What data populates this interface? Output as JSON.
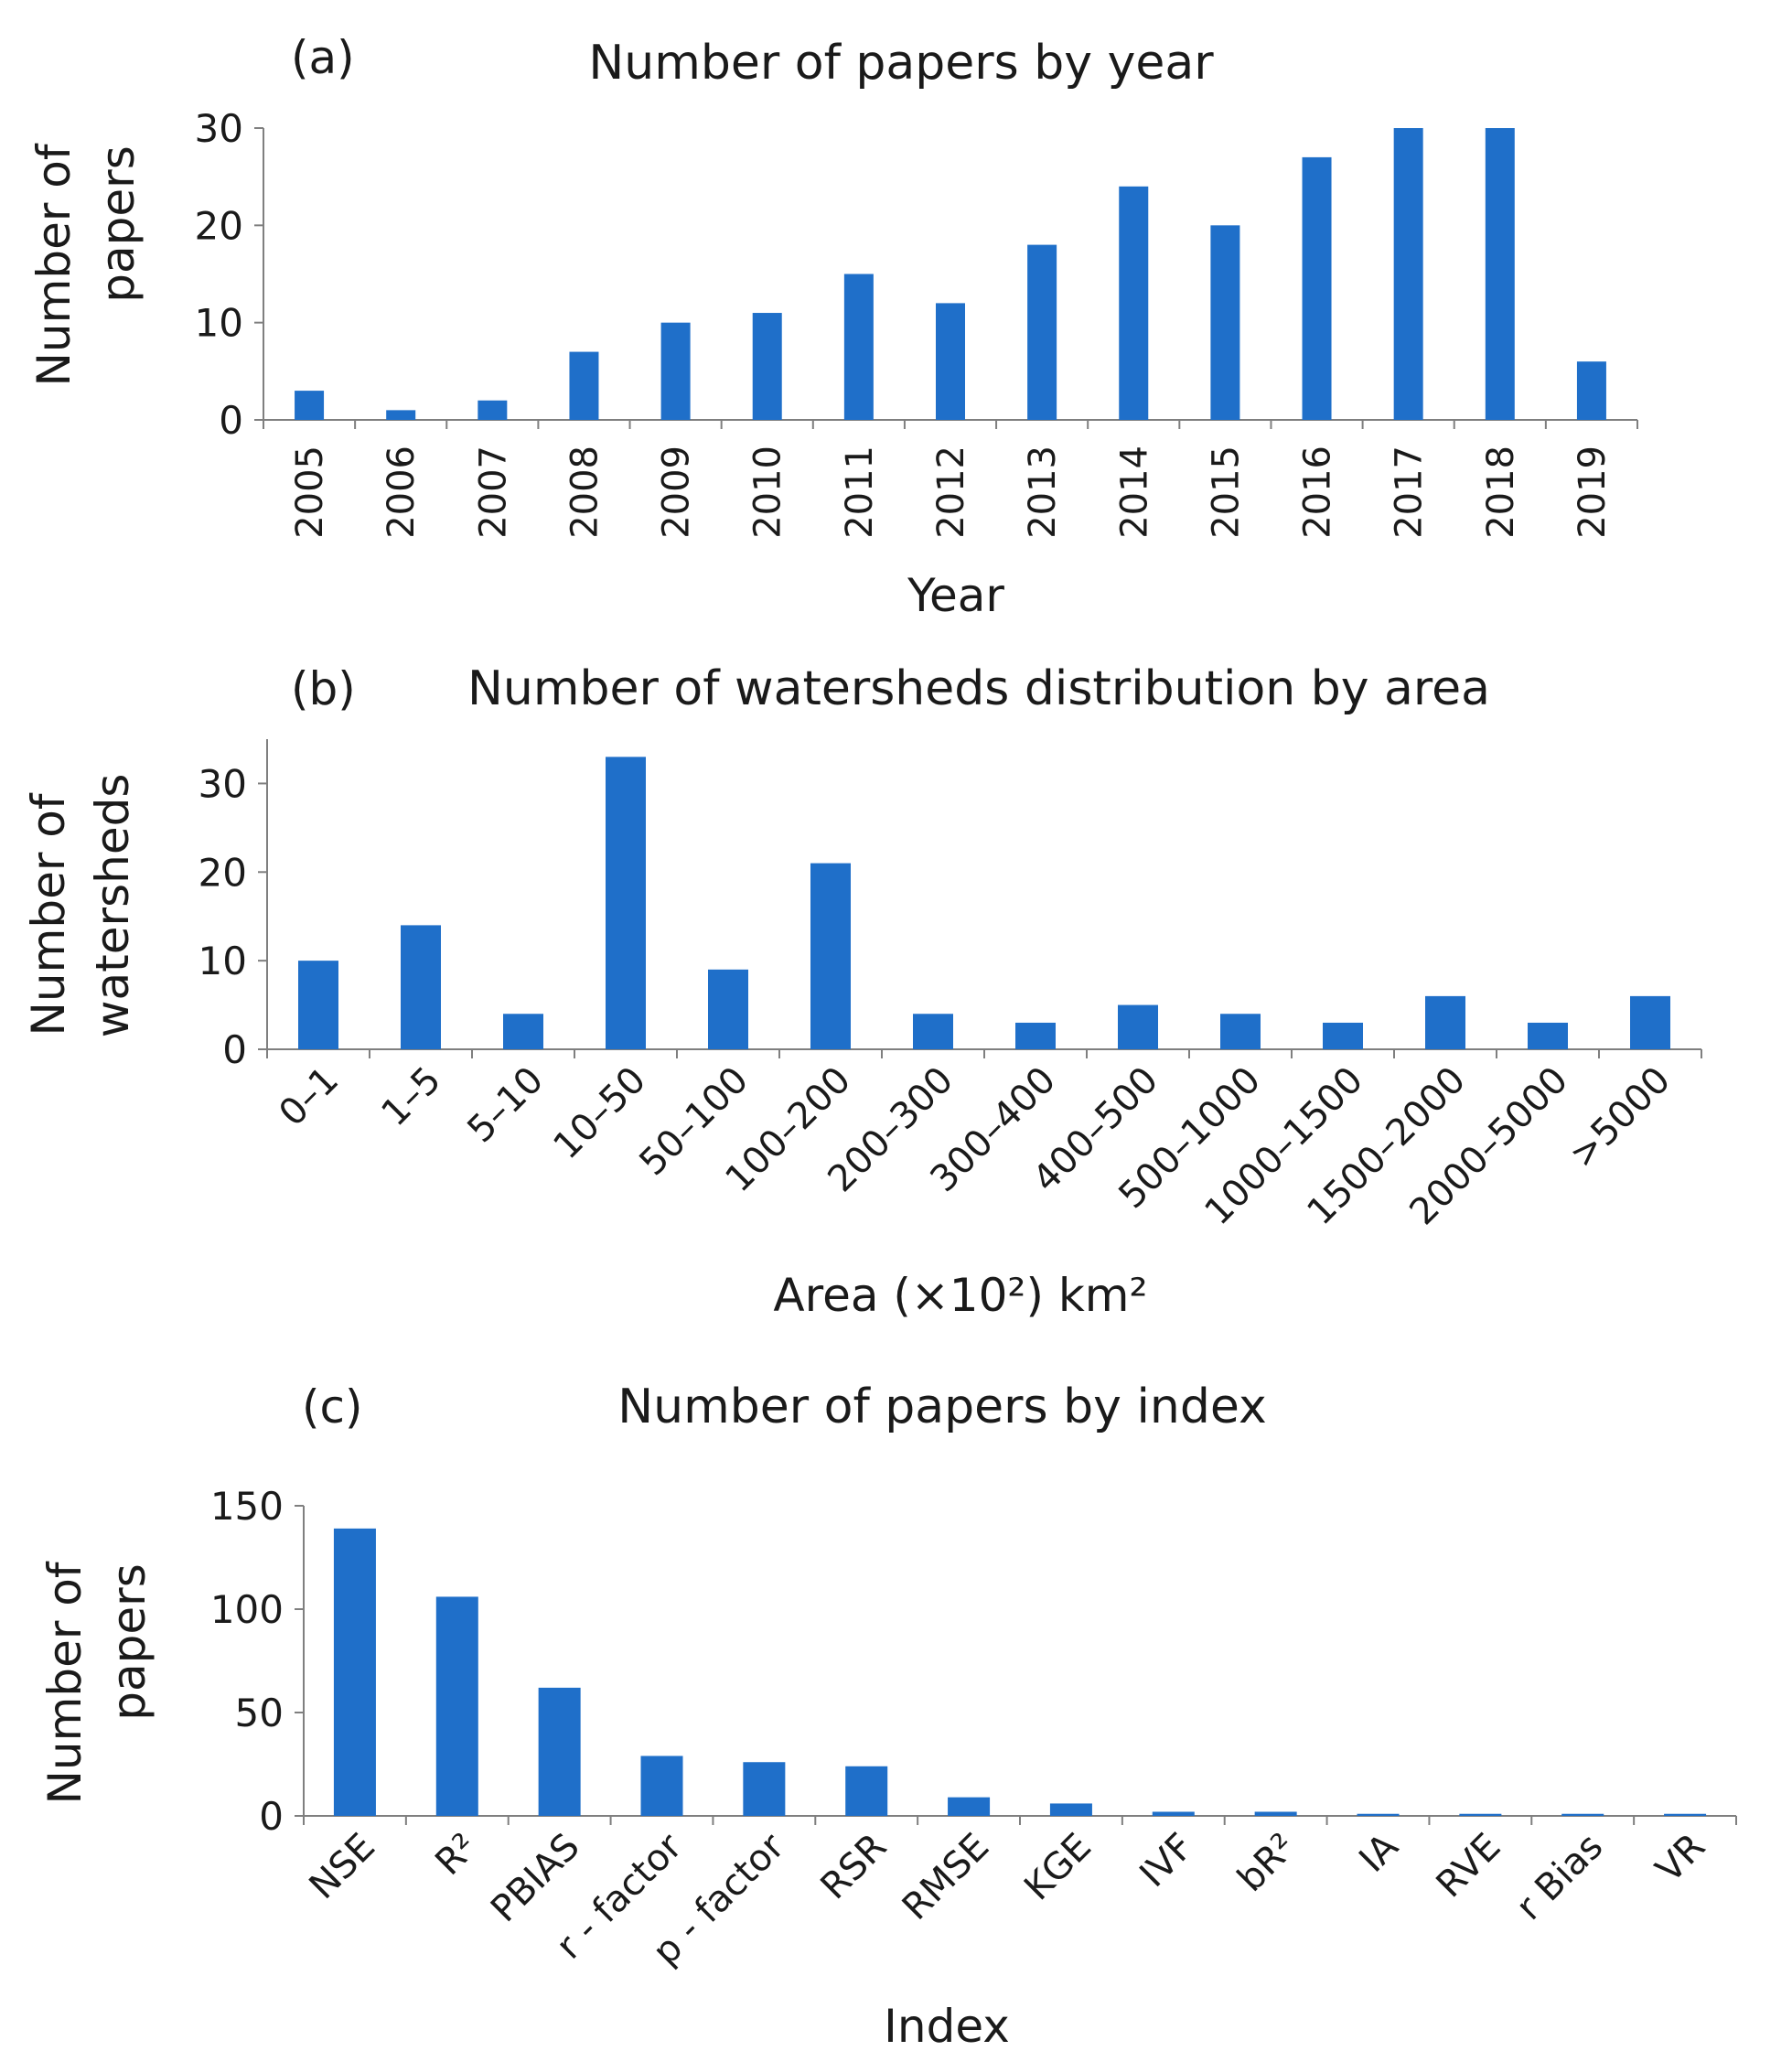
{
  "figure": {
    "bar_color": "#1f6fc9"
  },
  "chart_data": [
    {
      "type": "bar",
      "panel_label": "(a)",
      "title": "Number of papers by year",
      "xlabel": "Year",
      "ylabel_lines": [
        "Number of",
        "papers"
      ],
      "categories": [
        "2005",
        "2006",
        "2007",
        "2008",
        "2009",
        "2010",
        "2011",
        "2012",
        "2013",
        "2014",
        "2015",
        "2016",
        "2017",
        "2018",
        "2019"
      ],
      "values": [
        3,
        1,
        2,
        7,
        10,
        11,
        15,
        12,
        18,
        24,
        20,
        27,
        30,
        30,
        6
      ],
      "ylim": [
        0,
        30
      ],
      "yticks": [
        0,
        10,
        20,
        30
      ],
      "grid": false,
      "legend": "none"
    },
    {
      "type": "bar",
      "panel_label": "(b)",
      "title": "Number of watersheds distribution by area",
      "xlabel": "Area (×10²) km²",
      "ylabel_lines": [
        "Number of",
        "watersheds"
      ],
      "categories": [
        "0–1",
        "1–5",
        "5–10",
        "10–50",
        "50–100",
        "100–200",
        "200–300",
        "300–400",
        "400–500",
        "500–1000",
        "1000–1500",
        "1500–2000",
        "2000–5000",
        ">5000"
      ],
      "values": [
        10,
        14,
        4,
        33,
        9,
        21,
        4,
        3,
        5,
        4,
        3,
        6,
        3,
        6
      ],
      "ylim": [
        0,
        35
      ],
      "yticks": [
        0,
        10,
        20,
        30
      ],
      "grid": false,
      "legend": "none"
    },
    {
      "type": "bar",
      "panel_label": "(c)",
      "title": "Number of papers by index",
      "xlabel": "Index",
      "ylabel_lines": [
        "Number of",
        "papers"
      ],
      "categories": [
        "NSE",
        "R²",
        "PBIAS",
        "r - factor",
        "p - factor",
        "RSR",
        "RMSE",
        "KGE",
        "IVF",
        "bR²",
        "IA",
        "RVE",
        "r Bias",
        "VR"
      ],
      "values": [
        139,
        106,
        62,
        29,
        26,
        24,
        9,
        6,
        2,
        2,
        1,
        1,
        1,
        1
      ],
      "ylim": [
        0,
        150
      ],
      "yticks": [
        0,
        50,
        100,
        150
      ],
      "grid": false,
      "legend": "none"
    }
  ]
}
